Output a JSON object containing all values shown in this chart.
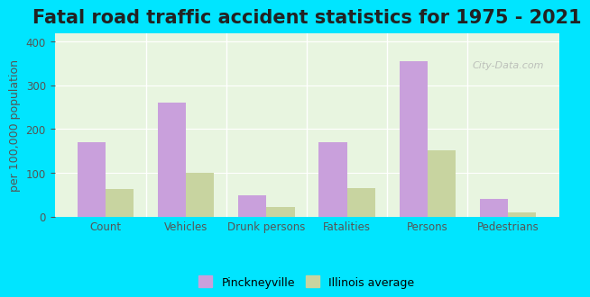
{
  "title": "Fatal road traffic accident statistics for 1975 - 2021",
  "categories": [
    "Count",
    "Vehicles",
    "Drunk persons",
    "Fatalities",
    "Persons",
    "Pedestrians"
  ],
  "pinckneyville": [
    170,
    260,
    48,
    170,
    355,
    40
  ],
  "illinois_avg": [
    62,
    100,
    22,
    65,
    152,
    10
  ],
  "pinckneyville_color": "#c9a0dc",
  "illinois_color": "#c8d4a0",
  "ylabel": "per 100,000 population",
  "ylim": [
    0,
    420
  ],
  "yticks": [
    0,
    100,
    200,
    300,
    400
  ],
  "background_color": "#e8f5e0",
  "outer_background": "#00e5ff",
  "title_fontsize": 15,
  "axis_label_fontsize": 9,
  "tick_fontsize": 8.5,
  "legend_fontsize": 9,
  "bar_width": 0.35,
  "watermark": "City-Data.com"
}
